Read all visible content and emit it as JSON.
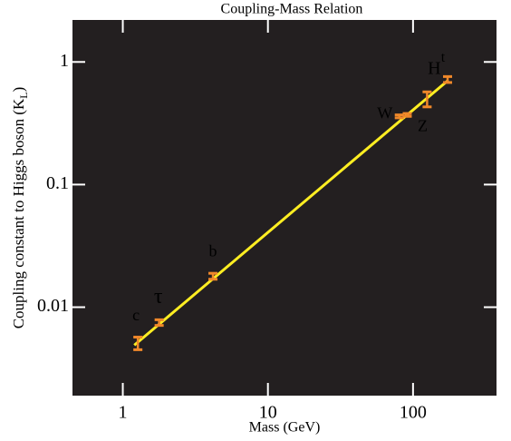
{
  "chart_data": {
    "type": "scatter",
    "title": "Coupling-Mass Relation",
    "xlabel": "Mass (GeV)",
    "ylabel": "Coupling constant to Higgs boson (K",
    "ylabel_sub": "L",
    "ylabel_end": ")",
    "log_x": true,
    "log_y": true,
    "xlim": [
      0.45,
      376
    ],
    "ylim": [
      0.0019,
      2.2
    ],
    "xticks": [
      1,
      10,
      100
    ],
    "yticks": [
      0.01,
      0.1,
      1
    ],
    "labels": [
      "c",
      "τ",
      "b",
      "W",
      "Z",
      "H",
      "t"
    ],
    "x": [
      1.27,
      1.78,
      4.18,
      80.4,
      91.2,
      125,
      173
    ],
    "values": [
      0.0051,
      0.0075,
      0.0179,
      0.36,
      0.37,
      0.5,
      0.72
    ],
    "errors": [
      0.0006,
      0.0004,
      0.001,
      0.01,
      0.01,
      0.07,
      0.04
    ],
    "color": "#f0882a",
    "fit": {
      "x": [
        1.2,
        175
      ],
      "y": [
        0.0049,
        0.71
      ],
      "color": "#ffee22"
    },
    "background": "#231f20"
  }
}
